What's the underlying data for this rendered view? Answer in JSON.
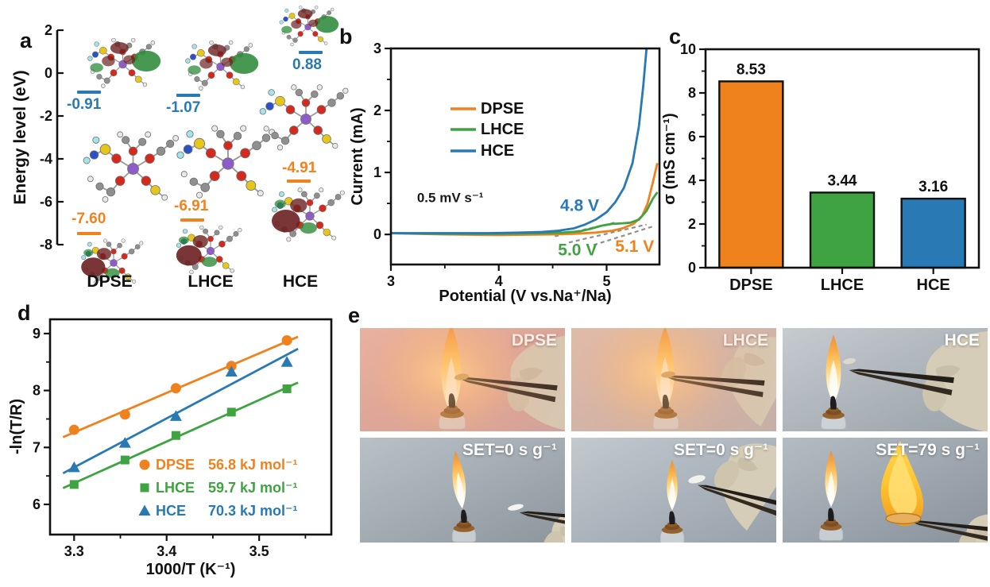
{
  "panel_labels": {
    "a": "a",
    "b": "b",
    "c": "c",
    "d": "d",
    "e": "e"
  },
  "colors": {
    "dpse": "#f0821e",
    "lhce": "#3fa342",
    "hce": "#2979b5"
  },
  "panel_a": {
    "ylabel": "Energy level (eV)",
    "yticks": [
      2,
      0,
      -2,
      -4,
      -6,
      -8
    ],
    "lumo_color": "#2979b5",
    "homo_color": "#f0821e",
    "columns": [
      {
        "name": "DPSE",
        "lumo": "-0.91",
        "homo": "-7.60"
      },
      {
        "name": "LHCE",
        "lumo": "-1.07",
        "homo": "-6.91"
      },
      {
        "name": "HCE",
        "lumo": "0.88",
        "homo": "-4.91"
      }
    ]
  },
  "chart_data": [
    {
      "id": "b",
      "type": "line",
      "xlabel": "Potential (V vs.Na⁺/Na)",
      "ylabel": "Current (mA)",
      "xlim": [
        3,
        5.49
      ],
      "ylim": [
        -0.485,
        3.0
      ],
      "xticks": [
        3,
        4,
        5
      ],
      "yticks": [
        0,
        1,
        2,
        3
      ],
      "x_minor": [
        3.5,
        4.5
      ],
      "y_minor": [
        0.5,
        1.5,
        2.5
      ],
      "legend_entries": [
        "DPSE",
        "LHCE",
        "HCE"
      ],
      "series": [
        {
          "name": "DPSE",
          "color": "#f0821e",
          "x": [
            3.0,
            3.5,
            4.0,
            4.5,
            4.7,
            4.9,
            5.05,
            5.15,
            5.25,
            5.33,
            5.38,
            5.43,
            5.47
          ],
          "y": [
            0.02,
            0.0,
            -0.01,
            0.0,
            0.01,
            0.03,
            0.06,
            0.1,
            0.17,
            0.3,
            0.5,
            0.85,
            1.15
          ]
        },
        {
          "name": "LHCE",
          "color": "#3fa342",
          "x": [
            3.0,
            3.5,
            4.0,
            4.4,
            4.6,
            4.75,
            4.85,
            4.95,
            5.05,
            5.15,
            5.22,
            5.3,
            5.37,
            5.43,
            5.47
          ],
          "y": [
            0.02,
            0.01,
            0.01,
            0.02,
            0.03,
            0.05,
            0.09,
            0.14,
            0.17,
            0.18,
            0.19,
            0.24,
            0.38,
            0.58,
            0.68
          ]
        },
        {
          "name": "HCE",
          "color": "#2979b5",
          "x": [
            3.0,
            3.3,
            3.6,
            3.9,
            4.2,
            4.4,
            4.55,
            4.7,
            4.8,
            4.9,
            5.0,
            5.08,
            5.16,
            5.24,
            5.3,
            5.34,
            5.37
          ],
          "y": [
            0.02,
            0.02,
            0.02,
            0.02,
            0.03,
            0.04,
            0.06,
            0.1,
            0.16,
            0.24,
            0.36,
            0.52,
            0.75,
            1.15,
            1.75,
            2.4,
            3.0
          ]
        }
      ],
      "guides": [
        {
          "x1": 4.52,
          "y1": -0.03,
          "x2": 5.1,
          "y2": 0.2
        },
        {
          "x1": 4.65,
          "y1": -0.13,
          "x2": 5.37,
          "y2": 0.16
        },
        {
          "x1": 4.88,
          "y1": -0.17,
          "x2": 5.43,
          "y2": 0.13
        }
      ],
      "annotations": [
        {
          "text": "0.5 mV s⁻¹",
          "x": 3.55,
          "y": 0.52,
          "color": "#1a1a1a",
          "size": 17
        },
        {
          "text": "4.8 V",
          "x": 4.75,
          "y": 0.38,
          "color": "#2979b5",
          "size": 21
        },
        {
          "text": "5.0 V",
          "x": 4.73,
          "y": -0.34,
          "color": "#3fa342",
          "size": 21
        },
        {
          "text": "5.1 V",
          "x": 5.26,
          "y": -0.28,
          "color": "#f0821e",
          "size": 21
        }
      ]
    },
    {
      "id": "c",
      "type": "bar",
      "ylabel": "σ (mS cm⁻¹)",
      "categories": [
        "DPSE",
        "LHCE",
        "HCE"
      ],
      "values": [
        8.53,
        3.44,
        3.16
      ],
      "value_labels": [
        "8.53",
        "3.44",
        "3.16"
      ],
      "colors": [
        "#f0821e",
        "#3fa342",
        "#2979b5"
      ],
      "ylim": [
        0,
        10
      ],
      "yticks": [
        0,
        2,
        4,
        6,
        8,
        10
      ],
      "y_minor": [
        1,
        3,
        5,
        7,
        9
      ]
    },
    {
      "id": "d",
      "type": "scatter",
      "xlabel": "1000/T (K⁻¹)",
      "ylabel": "-ln(T/R)",
      "xlim": [
        3.274,
        3.578
      ],
      "ylim": [
        5.47,
        9.25
      ],
      "xticks": [
        3.3,
        3.4,
        3.5
      ],
      "yticks": [
        6,
        7,
        8,
        9
      ],
      "x_minor": [
        3.35,
        3.45,
        3.55
      ],
      "y_minor": [
        6.5,
        7.5,
        8.5
      ],
      "x": [
        3.3,
        3.355,
        3.41,
        3.47,
        3.53
      ],
      "series": [
        {
          "name": "DPSE",
          "marker": "circle",
          "color": "#f0821e",
          "y": [
            7.31,
            7.58,
            8.04,
            8.43,
            8.88
          ],
          "legend_name": "DPSE",
          "legend_value": "56.8 kJ mol⁻¹"
        },
        {
          "name": "LHCE",
          "marker": "square",
          "color": "#3fa342",
          "y": [
            6.35,
            6.78,
            7.21,
            7.62,
            8.03
          ],
          "legend_name": "LHCE",
          "legend_value": "59.7 kJ mol⁻¹"
        },
        {
          "name": "HCE",
          "marker": "triangle",
          "color": "#2979b5",
          "y": [
            6.65,
            7.08,
            7.55,
            8.33,
            8.5
          ],
          "legend_name": "HCE",
          "legend_value": "70.3 kJ mol⁻¹"
        }
      ]
    }
  ],
  "panel_e": {
    "photos": [
      {
        "label": "DPSE"
      },
      {
        "label": "LHCE"
      },
      {
        "label": "HCE"
      },
      {
        "label": "SET=0 s g⁻¹"
      },
      {
        "label": "SET=0 s g⁻¹"
      },
      {
        "label": "SET=79 s g⁻¹"
      }
    ]
  }
}
